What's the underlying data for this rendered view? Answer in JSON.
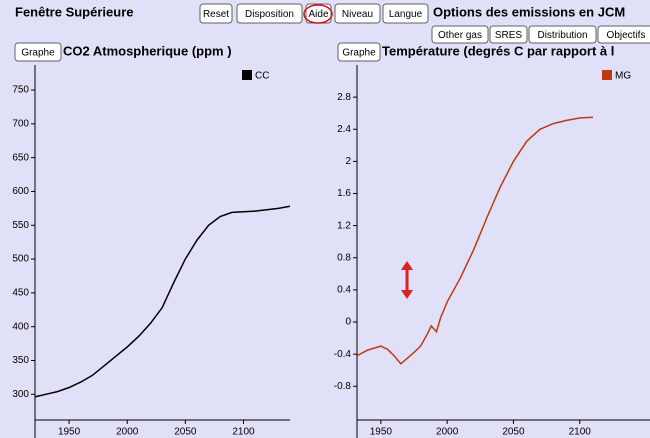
{
  "ui": {
    "window_title": "Fenêtre Supérieure",
    "buttons": [
      "Reset",
      "Disposition",
      "Aide",
      "Niveau",
      "Langue"
    ],
    "header": "Options des emissions en JCM",
    "tabs": [
      "Other gas",
      "SRES",
      "Distribution",
      "Objectifs"
    ],
    "graph_buttons": [
      "Graphe",
      "Graphe"
    ]
  },
  "chart_data": [
    {
      "type": "line",
      "title": "CO2 Atmospherique (ppm )",
      "x": [
        1920,
        1930,
        1940,
        1950,
        1960,
        1970,
        1980,
        1990,
        2000,
        2010,
        2020,
        2030,
        2040,
        2050,
        2060,
        2070,
        2080,
        2090,
        2100,
        2110,
        2120,
        2130,
        2140
      ],
      "series": [
        {
          "name": "CC",
          "color": "#000000",
          "values": [
            296,
            300,
            304,
            310,
            318,
            328,
            342,
            356,
            370,
            386,
            405,
            428,
            465,
            500,
            528,
            550,
            563,
            569,
            570,
            571,
            573,
            575,
            578
          ]
        }
      ],
      "xlim": [
        1920.7,
        2140
      ],
      "ylim": [
        262,
        787
      ],
      "xticks": [
        1950,
        2000,
        2050,
        2100
      ],
      "yticks": [
        300,
        350,
        400,
        450,
        500,
        550,
        600,
        650,
        700,
        750
      ],
      "legend": "upper right",
      "grid": false
    },
    {
      "type": "line",
      "title": "Température (degrés C par rapport à l",
      "x": [
        1932,
        1940,
        1950,
        1955,
        1960,
        1965,
        1970,
        1975,
        1980,
        1985,
        1988,
        1992,
        1995,
        2000,
        2010,
        2020,
        2030,
        2040,
        2050,
        2060,
        2070,
        2080,
        2090,
        2100,
        2110
      ],
      "series": [
        {
          "name": "MG",
          "color": "#c0390f",
          "values": [
            -0.42,
            -0.35,
            -0.3,
            -0.34,
            -0.42,
            -0.52,
            -0.45,
            -0.38,
            -0.3,
            -0.15,
            -0.05,
            -0.12,
            0.05,
            0.25,
            0.55,
            0.9,
            1.3,
            1.68,
            2.0,
            2.25,
            2.4,
            2.47,
            2.51,
            2.54,
            2.55
          ]
        }
      ],
      "xlim": [
        1932,
        2153
      ],
      "ylim": [
        -1.22,
        3.2
      ],
      "xticks": [
        1950,
        2000,
        2050,
        2100
      ],
      "yticks": [
        -0.8,
        -0.4,
        0,
        0.4,
        0.8,
        1.2,
        1.6,
        2,
        2.4,
        2.8
      ],
      "legend": "upper right",
      "grid": false
    }
  ]
}
